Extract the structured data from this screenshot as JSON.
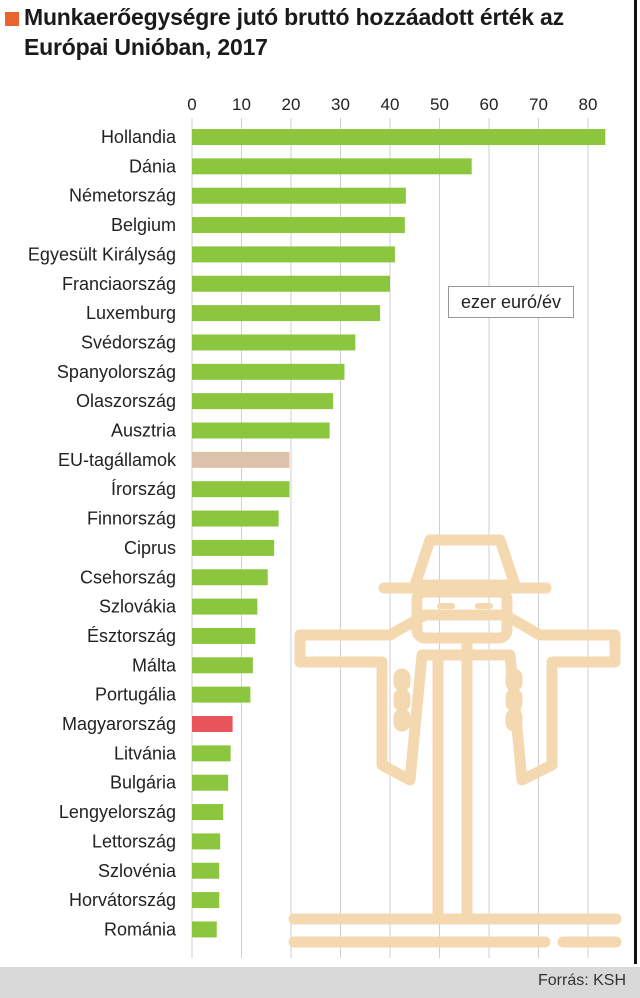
{
  "title": "Munkaerőegységre jutó bruttó hozzáadott érték az Európai Unióban, 2017",
  "unit_label": "ezer euró/év",
  "source": "Forrás: KSH",
  "colors": {
    "default": "#8cc63f",
    "eu_average": "#dcc2aa",
    "highlight": "#e8555a",
    "grid": "#cfcfcf",
    "illustration": "#f4d9b0"
  },
  "illustration": "scarecrow-illustration",
  "chart_data": {
    "type": "bar",
    "orientation": "horizontal",
    "title": "Munkaerőegységre jutó bruttó hozzáadott érték az Európai Unióban, 2017",
    "xlabel": "",
    "ylabel": "",
    "unit": "ezer euró/év",
    "xlim": [
      0,
      85
    ],
    "ticks": [
      0,
      10,
      20,
      30,
      40,
      50,
      60,
      70,
      80
    ],
    "grid": true,
    "categories": [
      "Hollandia",
      "Dánia",
      "Németország",
      "Belgium",
      "Egyesült Királyság",
      "Franciaország",
      "Luxemburg",
      "Svédország",
      "Spanyolország",
      "Olaszország",
      "Ausztria",
      "EU-tagállamok",
      "Írország",
      "Finnország",
      "Ciprus",
      "Csehország",
      "Szlovákia",
      "Észtország",
      "Málta",
      "Portugália",
      "Magyarország",
      "Litvánia",
      "Bulgária",
      "Lengyelország",
      "Lettország",
      "Szlovénia",
      "Horvátország",
      "Románia"
    ],
    "values": [
      83.5,
      56.5,
      43.2,
      43.0,
      41.0,
      40.0,
      38.0,
      33.0,
      30.8,
      28.5,
      27.8,
      19.7,
      19.7,
      17.5,
      16.6,
      15.3,
      13.2,
      12.8,
      12.3,
      11.8,
      8.2,
      7.8,
      7.3,
      6.3,
      5.7,
      5.5,
      5.5,
      5.0
    ],
    "highlight": {
      "EU-tagállamok": "eu_average",
      "Magyarország": "highlight"
    }
  }
}
